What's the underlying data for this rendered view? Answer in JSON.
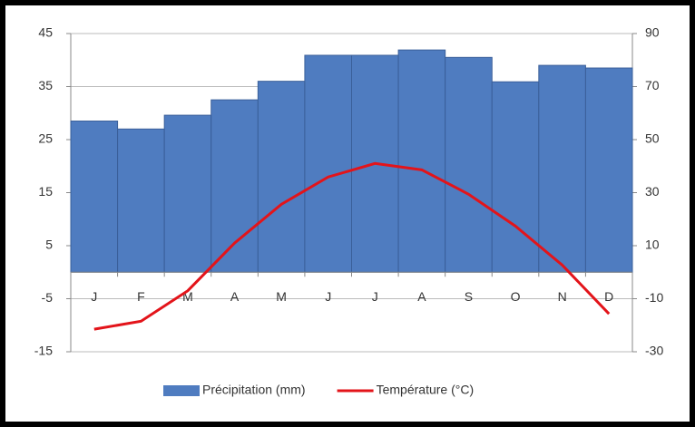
{
  "chart_data": {
    "type": "bar-line",
    "categories": [
      "J",
      "F",
      "M",
      "A",
      "M",
      "J",
      "J",
      "A",
      "S",
      "O",
      "N",
      "D"
    ],
    "series": [
      {
        "name": "Précipitation (mm)",
        "type": "bar",
        "color": "#4f7cc0",
        "values": [
          28.5,
          27,
          29.6,
          32.5,
          36,
          40.9,
          40.9,
          41.9,
          40.5,
          35.9,
          39,
          38.5
        ]
      },
      {
        "name": "Température (°C)",
        "type": "line",
        "axis": "y2",
        "color": "#e3141a",
        "values": [
          -21.5,
          -18.5,
          -7,
          11,
          25.6,
          35.9,
          41,
          38.6,
          29.4,
          17.4,
          2.7,
          -15.7
        ]
      }
    ],
    "ylim": [
      -15,
      45
    ],
    "yticks": [
      -15,
      -5,
      5,
      15,
      25,
      35,
      45
    ],
    "y2lim": [
      -30,
      90
    ],
    "y2ticks": [
      -30,
      -10,
      10,
      30,
      50,
      70,
      90
    ],
    "grid": true,
    "legend": "bottom"
  }
}
